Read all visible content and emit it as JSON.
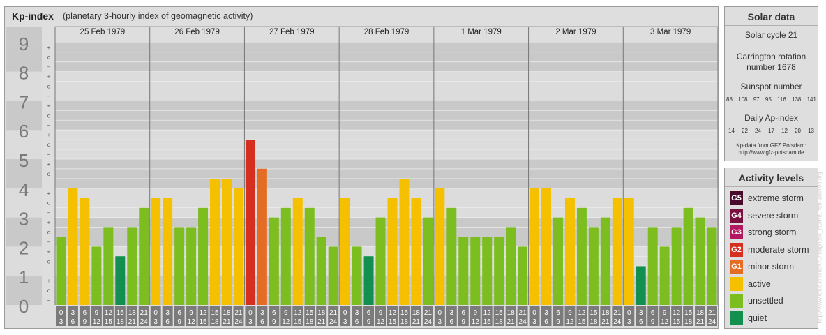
{
  "title": "Kp-index",
  "subtitle": "(planetary 3-hourly index of geomagnetic activity)",
  "chart_data": {
    "type": "bar",
    "title": "Kp-index",
    "subtitle": "(planetary 3-hourly index of geomagnetic activity)",
    "ylim": [
      0,
      9
    ],
    "y_ticks": [
      "0",
      "1",
      "2",
      "3",
      "4",
      "5",
      "6",
      "7",
      "8",
      "9"
    ],
    "thirds_labels": [
      "−",
      "o",
      "+"
    ],
    "days": [
      {
        "date": "25 Feb 1979",
        "values": [
          2.33,
          4.0,
          3.67,
          2.0,
          2.67,
          1.67,
          2.67,
          3.33
        ]
      },
      {
        "date": "26 Feb 1979",
        "values": [
          3.67,
          3.67,
          2.67,
          2.67,
          3.33,
          4.33,
          4.33,
          4.0
        ]
      },
      {
        "date": "27 Feb 1979",
        "values": [
          5.67,
          4.67,
          3.0,
          3.33,
          3.67,
          3.33,
          2.33,
          2.0
        ]
      },
      {
        "date": "28 Feb 1979",
        "values": [
          3.67,
          2.0,
          1.67,
          3.0,
          3.67,
          4.33,
          3.67,
          3.0
        ]
      },
      {
        "date": "1 Mar 1979",
        "values": [
          4.0,
          3.33,
          2.33,
          2.33,
          2.33,
          2.33,
          2.67,
          2.0
        ]
      },
      {
        "date": "2 Mar 1979",
        "values": [
          4.0,
          4.0,
          3.0,
          3.67,
          3.33,
          2.67,
          3.0,
          3.67
        ]
      },
      {
        "date": "3 Mar 1979",
        "values": [
          3.67,
          1.33,
          2.67,
          2.0,
          2.67,
          3.33,
          3.0,
          2.67
        ]
      }
    ],
    "hour_labels": [
      [
        "0",
        "3"
      ],
      [
        "3",
        "6"
      ],
      [
        "6",
        "9"
      ],
      [
        "9",
        "12"
      ],
      [
        "12",
        "15"
      ],
      [
        "15",
        "18"
      ],
      [
        "18",
        "21"
      ],
      [
        "21",
        "24"
      ]
    ],
    "color_scale": [
      {
        "below": 2,
        "color": "#13904f",
        "level": "quiet"
      },
      {
        "below": 3.67,
        "color": "#7cbd1f",
        "level": "unsettled"
      },
      {
        "below": 4.67,
        "color": "#f5c000",
        "level": "active"
      },
      {
        "below": 5.67,
        "color": "#e46d23",
        "level": "minor storm"
      },
      {
        "below": 6.67,
        "color": "#d42f1f",
        "level": "moderate storm"
      },
      {
        "below": 7.67,
        "color": "#b2185f",
        "level": "strong storm"
      },
      {
        "below": 8.67,
        "color": "#7a0f3f",
        "level": "severe storm"
      },
      {
        "below": 10,
        "color": "#4a0a2e",
        "level": "extreme storm"
      }
    ]
  },
  "solar": {
    "title": "Solar data",
    "solar_cycle": "Solar cycle 21",
    "carrington_line1": "Carrington rotation",
    "carrington_line2": "number 1678",
    "sunspot_title": "Sunspot number",
    "sunspot_values": [
      "88",
      "108",
      "97",
      "95",
      "116",
      "138",
      "141"
    ],
    "ap_title": "Daily Ap-index",
    "ap_values": [
      "14",
      "22",
      "24",
      "17",
      "12",
      "20",
      "13"
    ],
    "source_line1": "Kp-data from GFZ Potsdam:",
    "source_line2": "http://www.gfz-potsdam.de"
  },
  "activity": {
    "title": "Activity levels",
    "levels": [
      {
        "code": "G5",
        "label": "extreme storm",
        "color": "#4a0a2e"
      },
      {
        "code": "G4",
        "label": "severe storm",
        "color": "#7a0f3f"
      },
      {
        "code": "G3",
        "label": "strong storm",
        "color": "#b2185f"
      },
      {
        "code": "G2",
        "label": "moderate storm",
        "color": "#d42f1f"
      },
      {
        "code": "G1",
        "label": "minor storm",
        "color": "#e46d23"
      },
      {
        "code": "",
        "label": "active",
        "color": "#f5c000"
      },
      {
        "code": "",
        "label": "unsettled",
        "color": "#7cbd1f"
      },
      {
        "code": "",
        "label": "quiet",
        "color": "#13904f"
      }
    ]
  },
  "watermark": "http://www.tesis.lebedev.ru/magnetic_storms.html archive.org"
}
